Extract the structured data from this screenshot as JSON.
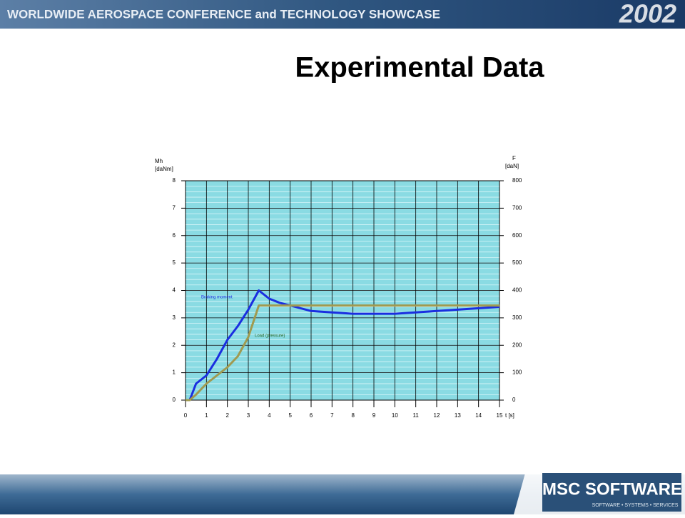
{
  "header": {
    "title": "WORLDWIDE AEROSPACE CONFERENCE and TECHNOLOGY SHOWCASE",
    "year": "2002"
  },
  "footer": {
    "logo": "MSC SOFTWARE",
    "tagline": "SOFTWARE • SYSTEMS • SERVICES"
  },
  "chart_data": {
    "type": "line",
    "title": "Experimental Data",
    "y_label": [
      "Mh",
      "[daNm]"
    ],
    "y2_label": [
      "F",
      "[daN]"
    ],
    "x_label": "t [s]",
    "x": [
      0,
      0.2,
      0.5,
      1,
      1.5,
      2,
      2.5,
      3,
      3.5,
      4,
      4.5,
      5,
      5.5,
      6,
      7,
      8,
      9,
      10,
      11,
      12,
      13,
      14,
      15
    ],
    "series": [
      {
        "name": "Braking moment",
        "color": "#1a2ee0",
        "axis": "y",
        "values": [
          0,
          0,
          0.6,
          0.9,
          1.5,
          2.2,
          2.7,
          3.3,
          4.0,
          3.7,
          3.55,
          3.45,
          3.35,
          3.25,
          3.2,
          3.15,
          3.15,
          3.15,
          3.2,
          3.25,
          3.3,
          3.35,
          3.4
        ]
      },
      {
        "name": "Load (pressure)",
        "color": "#a09a50",
        "axis": "y2",
        "values": [
          0,
          0,
          20,
          60,
          90,
          120,
          160,
          230,
          345,
          345,
          345,
          345,
          345,
          345,
          345,
          345,
          345,
          345,
          345,
          345,
          345,
          345,
          345
        ]
      }
    ],
    "xlim": [
      0,
      15
    ],
    "xticks": [
      0,
      1,
      2,
      3,
      4,
      5,
      6,
      7,
      8,
      9,
      10,
      11,
      12,
      13,
      14,
      15
    ],
    "ylim": [
      0,
      8
    ],
    "yticks": [
      0,
      1,
      2,
      3,
      4,
      5,
      6,
      7,
      8
    ],
    "y2lim": [
      0,
      800
    ],
    "y2ticks": [
      0,
      100,
      200,
      300,
      400,
      500,
      600,
      700,
      800
    ],
    "grid": true
  }
}
